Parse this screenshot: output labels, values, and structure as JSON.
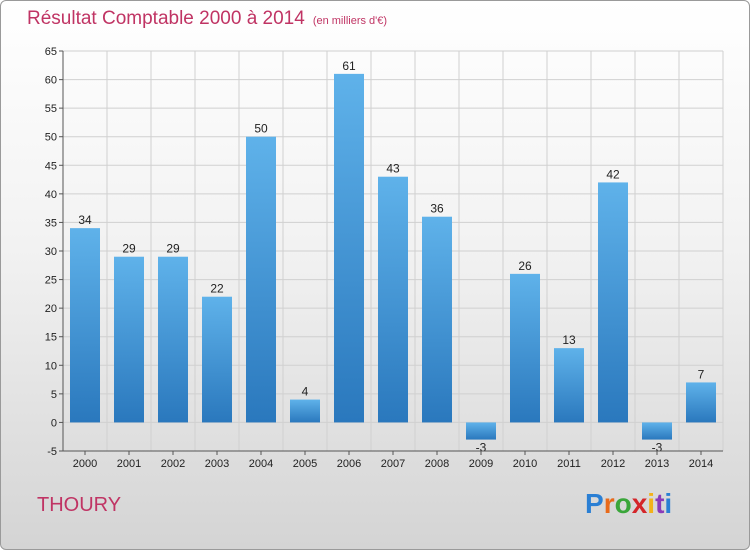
{
  "title": {
    "main": "Résultat Comptable 2000 à 2014",
    "unit": "(en milliers d'€)"
  },
  "commune": "THOURY",
  "logo": {
    "text": "Proxiti",
    "letter_colors": [
      "#2a7fd4",
      "#e86a1a",
      "#3aa63a",
      "#d4262a",
      "#f2b21a",
      "#8a3ab9",
      "#2a7fd4"
    ]
  },
  "colors": {
    "title": "#c03464",
    "bar_top": "#5fb2ea",
    "bar_bottom": "#2a78bd",
    "grid": "#d0d0d0",
    "axis": "#555555"
  },
  "chart_data": {
    "type": "bar",
    "title": "Résultat Comptable 2000 à 2014",
    "xlabel": "",
    "ylabel": "",
    "ylim": [
      -5,
      65
    ],
    "yticks": [
      -5,
      0,
      5,
      10,
      15,
      20,
      25,
      30,
      35,
      40,
      45,
      50,
      55,
      60,
      65
    ],
    "categories": [
      "2000",
      "2001",
      "2002",
      "2003",
      "2004",
      "2005",
      "2006",
      "2007",
      "2008",
      "2009",
      "2010",
      "2011",
      "2012",
      "2013",
      "2014"
    ],
    "values": [
      34,
      29,
      29,
      22,
      50,
      4,
      61,
      43,
      36,
      -3,
      26,
      13,
      42,
      -3,
      7
    ],
    "grid": true
  }
}
